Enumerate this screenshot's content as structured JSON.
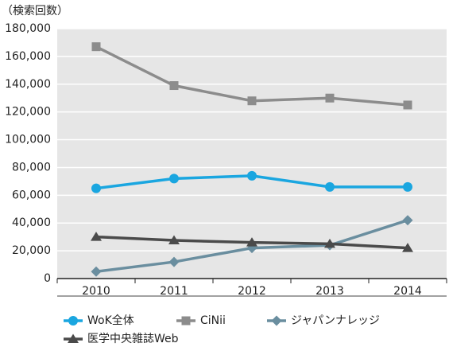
{
  "chart_data": {
    "type": "line",
    "ylabel": "（検索回数）",
    "categories": [
      "2010",
      "2011",
      "2012",
      "2013",
      "2014"
    ],
    "series": [
      {
        "name": "WoK全体",
        "color": "#1aa6e0",
        "marker": "circle",
        "values": [
          65000,
          72000,
          74000,
          66000,
          66000
        ]
      },
      {
        "name": "CiNii",
        "color": "#8c8c8c",
        "marker": "square",
        "values": [
          167000,
          139000,
          128000,
          130000,
          125000
        ]
      },
      {
        "name": "ジャパンナレッジ",
        "color": "#6a8e9f",
        "marker": "diamond",
        "values": [
          5000,
          12000,
          22000,
          24000,
          42000
        ]
      },
      {
        "name": "医学中央雑誌Web",
        "color": "#4a4a4a",
        "marker": "triangle",
        "values": [
          30000,
          27500,
          26000,
          25000,
          22000
        ]
      }
    ],
    "ylim": [
      0,
      180000
    ],
    "yticks": [
      0,
      {
        "value": 20000,
        "label": "20,000"
      },
      {
        "value": 40000,
        "label": "40,000"
      },
      {
        "value": 60000,
        "label": "60,000"
      },
      {
        "value": 80000,
        "label": "80,000"
      },
      {
        "value": 100000,
        "label": "100,000"
      },
      {
        "value": 120000,
        "label": "120,000"
      },
      {
        "value": 140000,
        "label": "140,000"
      },
      {
        "value": 160000,
        "label": "160,000"
      },
      {
        "value": 180000,
        "label": "180,000"
      }
    ],
    "grid": true,
    "legend": "bottom"
  }
}
